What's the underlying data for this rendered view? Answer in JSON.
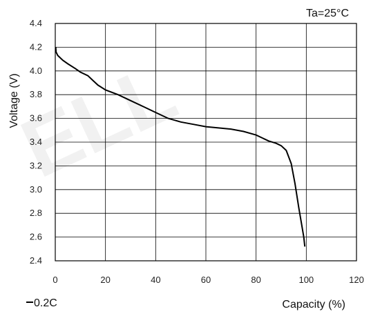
{
  "chart_data": {
    "type": "line",
    "annotation": "Ta=25°C",
    "xlabel": "Capacity (%)",
    "ylabel": "Voltage (V)",
    "xlim": [
      0,
      120
    ],
    "ylim": [
      2.4,
      4.4
    ],
    "x_ticks": [
      "0",
      "20",
      "40",
      "60",
      "80",
      "100",
      "120"
    ],
    "y_ticks": [
      "4.4",
      "4.2",
      "4.0",
      "3.8",
      "3.6",
      "3.4",
      "3.2",
      "3.0",
      "2.8",
      "2.6",
      "2.4"
    ],
    "grid": true,
    "legend": {
      "position": "bottom-left",
      "entries": [
        "0.2C"
      ]
    },
    "series": [
      {
        "name": "0.2C",
        "color": "#000000",
        "points": [
          [
            0.2,
            4.2
          ],
          [
            0.3,
            4.16
          ],
          [
            1,
            4.13
          ],
          [
            3,
            4.09
          ],
          [
            5,
            4.06
          ],
          [
            8,
            4.02
          ],
          [
            10,
            3.99
          ],
          [
            13,
            3.96
          ],
          [
            15,
            3.92
          ],
          [
            17,
            3.88
          ],
          [
            20,
            3.84
          ],
          [
            25,
            3.8
          ],
          [
            30,
            3.75
          ],
          [
            35,
            3.7
          ],
          [
            40,
            3.65
          ],
          [
            45,
            3.6
          ],
          [
            50,
            3.57
          ],
          [
            55,
            3.55
          ],
          [
            60,
            3.53
          ],
          [
            65,
            3.52
          ],
          [
            70,
            3.51
          ],
          [
            75,
            3.49
          ],
          [
            80,
            3.46
          ],
          [
            85,
            3.41
          ],
          [
            88,
            3.39
          ],
          [
            90,
            3.37
          ],
          [
            92,
            3.33
          ],
          [
            94,
            3.22
          ],
          [
            95.5,
            3.05
          ],
          [
            97,
            2.85
          ],
          [
            98.2,
            2.7
          ],
          [
            99,
            2.6
          ],
          [
            99.4,
            2.52
          ]
        ]
      }
    ]
  }
}
